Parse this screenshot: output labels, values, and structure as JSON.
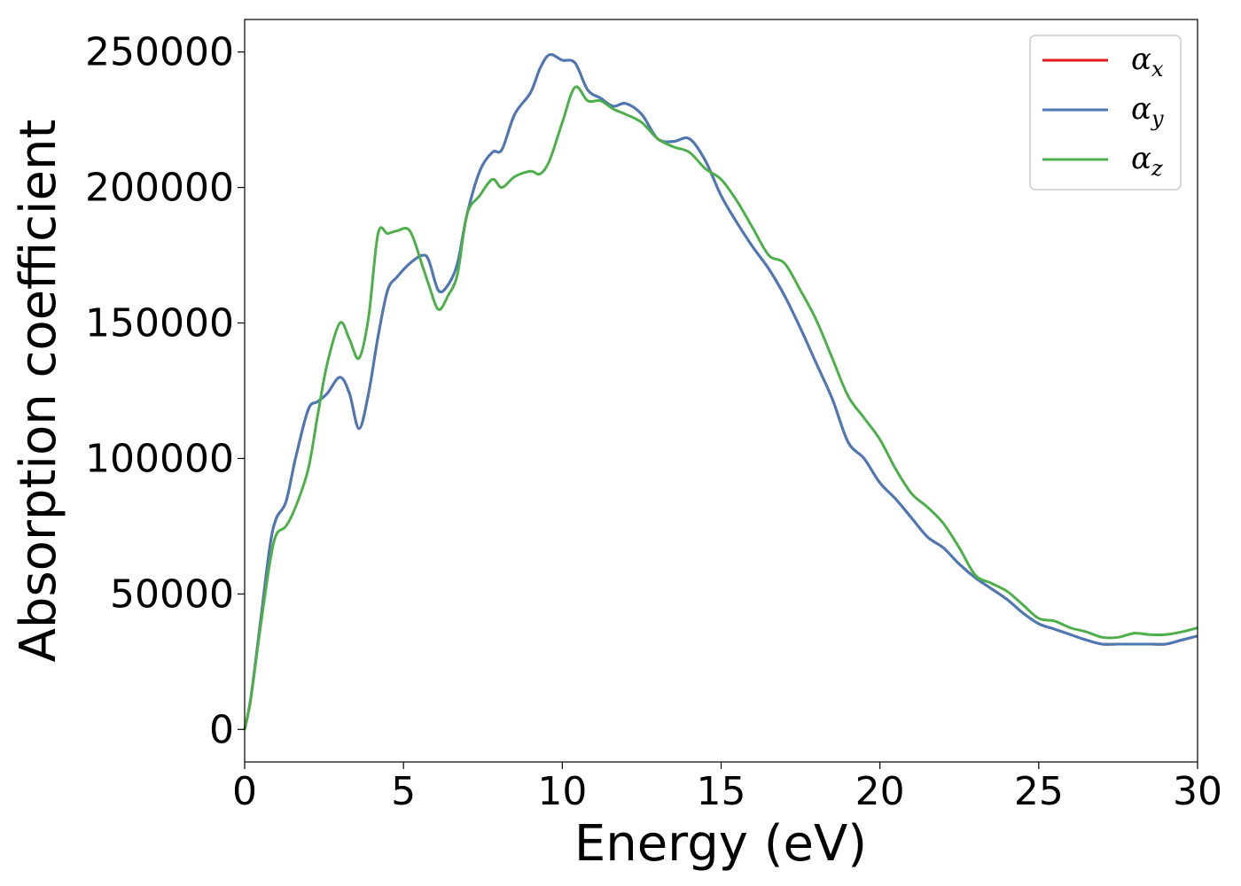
{
  "chart_data": {
    "type": "line",
    "title": "",
    "xlabel": "Energy (eV)",
    "ylabel": "Absorption coefficient",
    "xlim": [
      0,
      30
    ],
    "ylim": [
      -12000,
      262000
    ],
    "x_ticks": [
      0,
      5,
      10,
      15,
      20,
      25,
      30
    ],
    "y_ticks": [
      0,
      50000,
      100000,
      150000,
      200000,
      250000
    ],
    "grid": false,
    "legend_position": "top-right",
    "legend": [
      {
        "symbol": "α",
        "sub": "x",
        "color": "#e41a1c"
      },
      {
        "symbol": "α",
        "sub": "y",
        "color": "#4a7ab5"
      },
      {
        "symbol": "α",
        "sub": "z",
        "color": "#4daf4a"
      }
    ],
    "x": [
      0,
      0.2,
      0.5,
      0.8,
      1.0,
      1.3,
      1.6,
      2.0,
      2.3,
      2.6,
      3.0,
      3.3,
      3.6,
      3.9,
      4.2,
      4.5,
      4.8,
      5.2,
      5.6,
      5.8,
      6.1,
      6.4,
      6.7,
      7.0,
      7.4,
      7.8,
      8.1,
      8.5,
      9.0,
      9.3,
      9.6,
      10.0,
      10.4,
      10.8,
      11.2,
      11.6,
      12.0,
      12.5,
      13.0,
      13.5,
      14.0,
      14.5,
      15.0,
      15.5,
      16.0,
      16.5,
      17.0,
      17.5,
      18.0,
      18.5,
      19.0,
      19.5,
      20.0,
      20.5,
      21.0,
      21.5,
      22.0,
      22.5,
      23.0,
      23.5,
      24.0,
      24.5,
      25.0,
      25.5,
      26.0,
      26.5,
      27.0,
      27.5,
      28.0,
      28.5,
      29.0,
      29.5,
      30.0
    ],
    "series": [
      {
        "name": "",
        "color": "#e41a1c",
        "values": [
          0,
          12000,
          40000,
          68000,
          78000,
          84000,
          100000,
          118000,
          121000,
          124000,
          130000,
          124000,
          111000,
          124000,
          145000,
          162000,
          167000,
          172000,
          175000,
          173000,
          162000,
          164000,
          172000,
          190000,
          206000,
          213000,
          214000,
          227000,
          235000,
          244000,
          249000,
          247000,
          246000,
          236000,
          233000,
          230000,
          231000,
          227000,
          218000,
          217000,
          218000,
          210000,
          197000,
          187000,
          178000,
          170000,
          160000,
          148000,
          135000,
          122000,
          106000,
          100000,
          91000,
          85000,
          78000,
          71000,
          67000,
          61000,
          56000,
          52000,
          48000,
          43000,
          39000,
          37000,
          35000,
          33000,
          31500,
          31500,
          31500,
          31500,
          31500,
          33000,
          34500
        ]
      },
      {
        "name": "",
        "color": "#4a7ab5",
        "values": [
          0,
          12000,
          40000,
          68000,
          78000,
          84000,
          100000,
          118000,
          121000,
          124000,
          130000,
          124000,
          111000,
          124000,
          145000,
          162000,
          167000,
          172000,
          175000,
          173000,
          162000,
          164000,
          172000,
          190000,
          206000,
          213000,
          214000,
          227000,
          235000,
          244000,
          249000,
          247000,
          246000,
          236000,
          233000,
          230000,
          231000,
          227000,
          218000,
          217000,
          218000,
          210000,
          197000,
          187000,
          178000,
          170000,
          160000,
          148000,
          135000,
          122000,
          106000,
          100000,
          91000,
          85000,
          78000,
          71000,
          67000,
          61000,
          56000,
          52000,
          48000,
          43000,
          39000,
          37000,
          35000,
          33000,
          31500,
          31500,
          31500,
          31500,
          31500,
          33000,
          34500
        ]
      },
      {
        "name": "",
        "color": "#4daf4a",
        "values": [
          0,
          12000,
          38000,
          62000,
          72000,
          75000,
          82000,
          96000,
          116000,
          135000,
          150000,
          144000,
          137000,
          152000,
          183000,
          183000,
          184000,
          184000,
          171000,
          164000,
          155000,
          160000,
          168000,
          190000,
          197000,
          203000,
          200000,
          204000,
          206000,
          205000,
          210000,
          224000,
          237000,
          232000,
          232000,
          229000,
          227000,
          224000,
          218000,
          215000,
          213000,
          207000,
          203000,
          195000,
          185000,
          175000,
          172000,
          162000,
          151000,
          137000,
          123000,
          115000,
          107000,
          96000,
          87000,
          82000,
          76000,
          67000,
          57000,
          54000,
          51000,
          46000,
          41000,
          40000,
          37500,
          36000,
          34000,
          34000,
          35500,
          35000,
          35000,
          36000,
          37500
        ]
      }
    ]
  }
}
